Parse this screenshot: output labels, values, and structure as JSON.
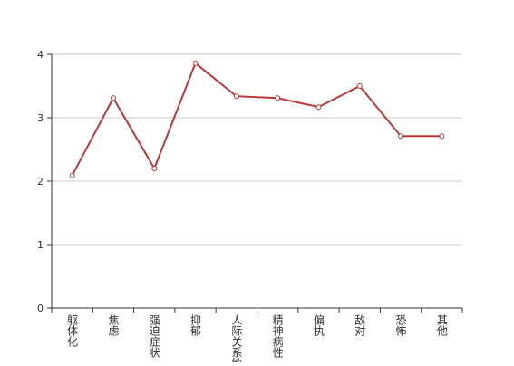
{
  "chart_data": {
    "type": "line",
    "categories": [
      "躯体化",
      "焦虑",
      "强迫症状",
      "抑郁",
      "人际关系敏感",
      "精神病性",
      "偏执",
      "敌对",
      "恐怖",
      "其他"
    ],
    "values": [
      2.09,
      3.31,
      2.2,
      3.86,
      3.34,
      3.31,
      3.17,
      3.5,
      2.71,
      2.71
    ],
    "color": "#b8383a",
    "ylim": [
      0,
      4
    ],
    "yticks": [
      0,
      1,
      2,
      3,
      4
    ],
    "grid": true
  }
}
